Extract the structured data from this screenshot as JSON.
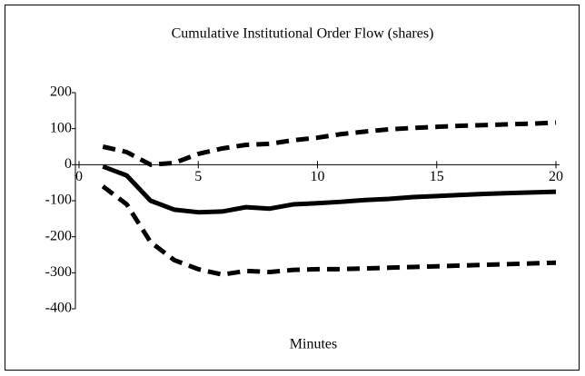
{
  "chart_data": {
    "type": "line",
    "title": "Cumulative Institutional Order Flow (shares)",
    "x_label": "Minutes",
    "x": [
      1,
      2,
      3,
      4,
      5,
      6,
      7,
      8,
      9,
      10,
      11,
      12,
      13,
      14,
      15,
      16,
      17,
      18,
      19,
      20
    ],
    "series": [
      {
        "color": "#000000",
        "style": "dashed",
        "values": [
          50,
          35,
          0,
          5,
          30,
          45,
          55,
          58,
          68,
          75,
          85,
          92,
          98,
          102,
          105,
          108,
          110,
          112,
          114,
          117
        ]
      },
      {
        "color": "#000000",
        "style": "solid",
        "values": [
          -5,
          -30,
          -100,
          -125,
          -132,
          -130,
          -118,
          -122,
          -110,
          -107,
          -103,
          -98,
          -95,
          -90,
          -87,
          -84,
          -81,
          -79,
          -77,
          -75
        ]
      },
      {
        "color": "#000000",
        "style": "dashed",
        "values": [
          -60,
          -110,
          -215,
          -265,
          -290,
          -305,
          -295,
          -298,
          -292,
          -290,
          -290,
          -288,
          -286,
          -284,
          -282,
          -280,
          -278,
          -276,
          -274,
          -272
        ]
      }
    ],
    "xlim": [
      0,
      20
    ],
    "xticks": [
      0,
      5,
      10,
      15,
      20
    ],
    "ylim": [
      -400,
      200
    ],
    "yticks": [
      200,
      100,
      0,
      -100,
      -200,
      -300,
      -400
    ]
  }
}
